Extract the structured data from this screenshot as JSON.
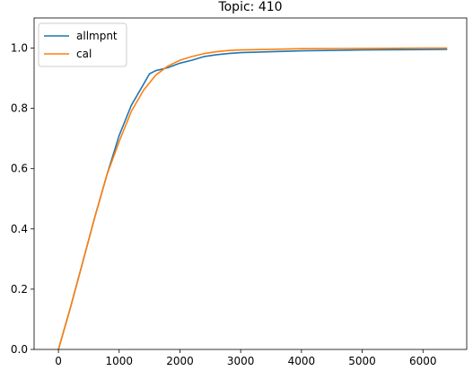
{
  "chart_data": {
    "type": "line",
    "title": "Topic: 410",
    "xlabel": "",
    "ylabel": "",
    "xlim": [
      -400,
      6720
    ],
    "ylim": [
      0.0,
      1.1
    ],
    "xticks": [
      0,
      1000,
      2000,
      3000,
      4000,
      5000,
      6000
    ],
    "yticks": [
      0.0,
      0.2,
      0.4,
      0.6,
      0.8,
      1.0
    ],
    "xtick_labels": [
      "0",
      "1000",
      "2000",
      "3000",
      "4000",
      "5000",
      "6000"
    ],
    "ytick_labels": [
      "0.0",
      "0.2",
      "0.4",
      "0.6",
      "0.8",
      "1.0"
    ],
    "grid": false,
    "legend_position": "top-left",
    "series": [
      {
        "name": "allmpnt",
        "color": "#1f77b4",
        "x": [
          0,
          200,
          400,
          600,
          800,
          1000,
          1200,
          1400,
          1500,
          1600,
          1800,
          2000,
          2200,
          2400,
          2600,
          2800,
          3000,
          3500,
          4000,
          5000,
          6000,
          6400
        ],
        "y": [
          0.0,
          0.14,
          0.29,
          0.44,
          0.58,
          0.71,
          0.81,
          0.88,
          0.915,
          0.925,
          0.935,
          0.95,
          0.96,
          0.972,
          0.978,
          0.982,
          0.985,
          0.988,
          0.991,
          0.994,
          0.995,
          0.996
        ]
      },
      {
        "name": "cal",
        "color": "#ff7f0e",
        "x": [
          0,
          200,
          400,
          600,
          800,
          1000,
          1200,
          1400,
          1600,
          1800,
          2000,
          2200,
          2400,
          2600,
          2800,
          3000,
          3500,
          4000,
          5000,
          6000,
          6400
        ],
        "y": [
          0.0,
          0.14,
          0.29,
          0.44,
          0.58,
          0.69,
          0.79,
          0.86,
          0.91,
          0.94,
          0.96,
          0.972,
          0.982,
          0.988,
          0.992,
          0.994,
          0.996,
          0.998,
          0.999,
          1.0,
          1.0
        ]
      }
    ]
  }
}
